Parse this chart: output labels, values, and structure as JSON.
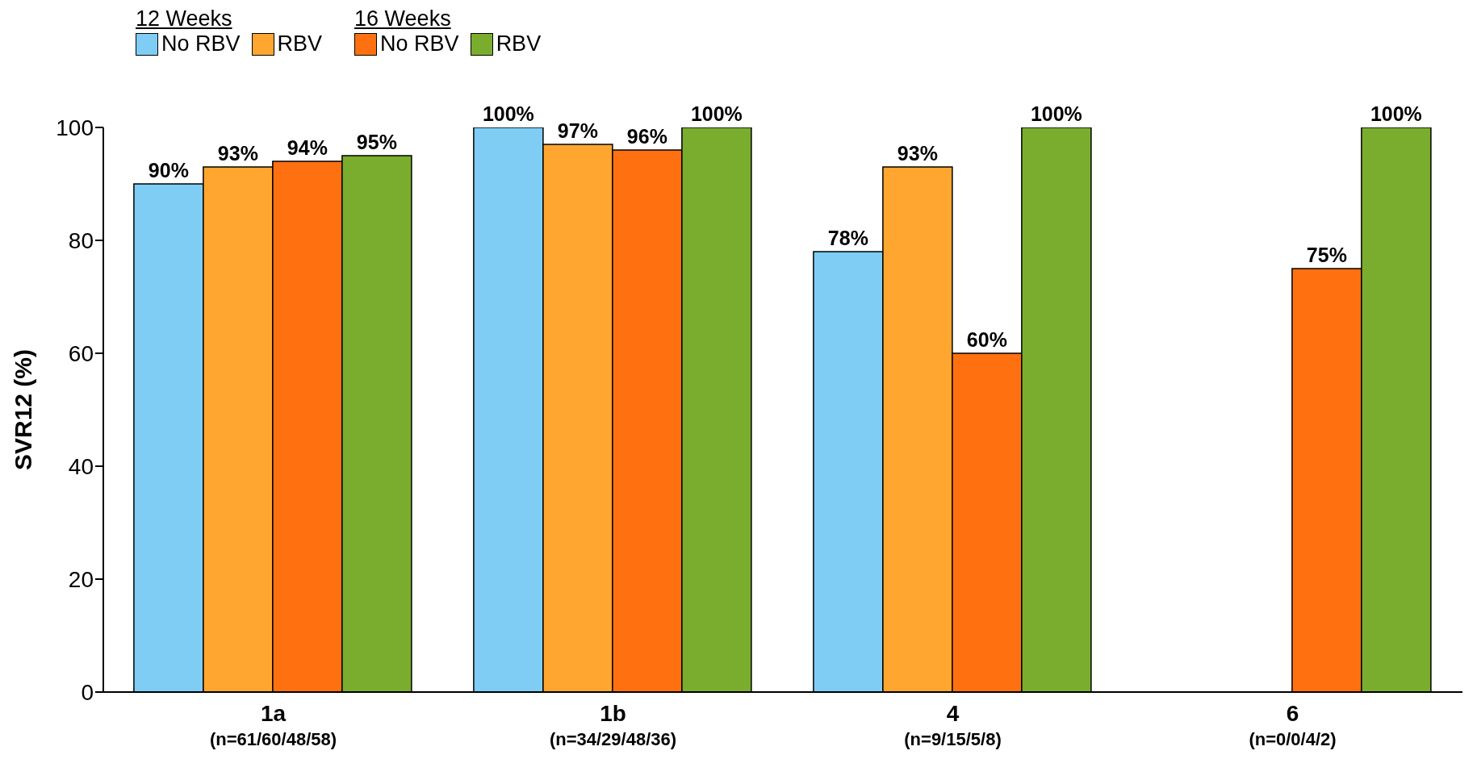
{
  "chart_data": {
    "type": "bar",
    "ylabel": "SVR12 (%)",
    "categories": [
      "1a\n(n=61/60/48/58)",
      "1b\n(n=34/29/48/36)",
      "4\n(n=9/15/5/8)",
      "6\n(n=0/0/4/2)"
    ],
    "annotations": [
      "12 Weeks",
      "16 Weeks"
    ],
    "series": [
      {
        "name": "No RBV",
        "color": "#7fcdf5",
        "values": [
          90,
          100,
          78,
          null
        ],
        "value_labels": [
          "90%",
          "100%",
          "78%",
          null
        ]
      },
      {
        "name": "RBV",
        "color": "#ffa630",
        "values": [
          93,
          97,
          93,
          null
        ],
        "value_labels": [
          "93%",
          "97%",
          "93%",
          null
        ]
      },
      {
        "name": "No RBV",
        "color": "#ff7010",
        "values": [
          94,
          96,
          60,
          75
        ],
        "value_labels": [
          "94%",
          "96%",
          "60%",
          "75%"
        ]
      },
      {
        "name": "RBV",
        "color": "#7aad2e",
        "values": [
          95,
          100,
          100,
          100
        ],
        "value_labels": [
          "95%",
          "100%",
          "100%",
          "100%"
        ]
      }
    ],
    "ylim": [
      0,
      100
    ],
    "yticks": [
      0,
      20,
      40,
      60,
      80,
      100
    ],
    "grid": false,
    "legend": "top left"
  }
}
